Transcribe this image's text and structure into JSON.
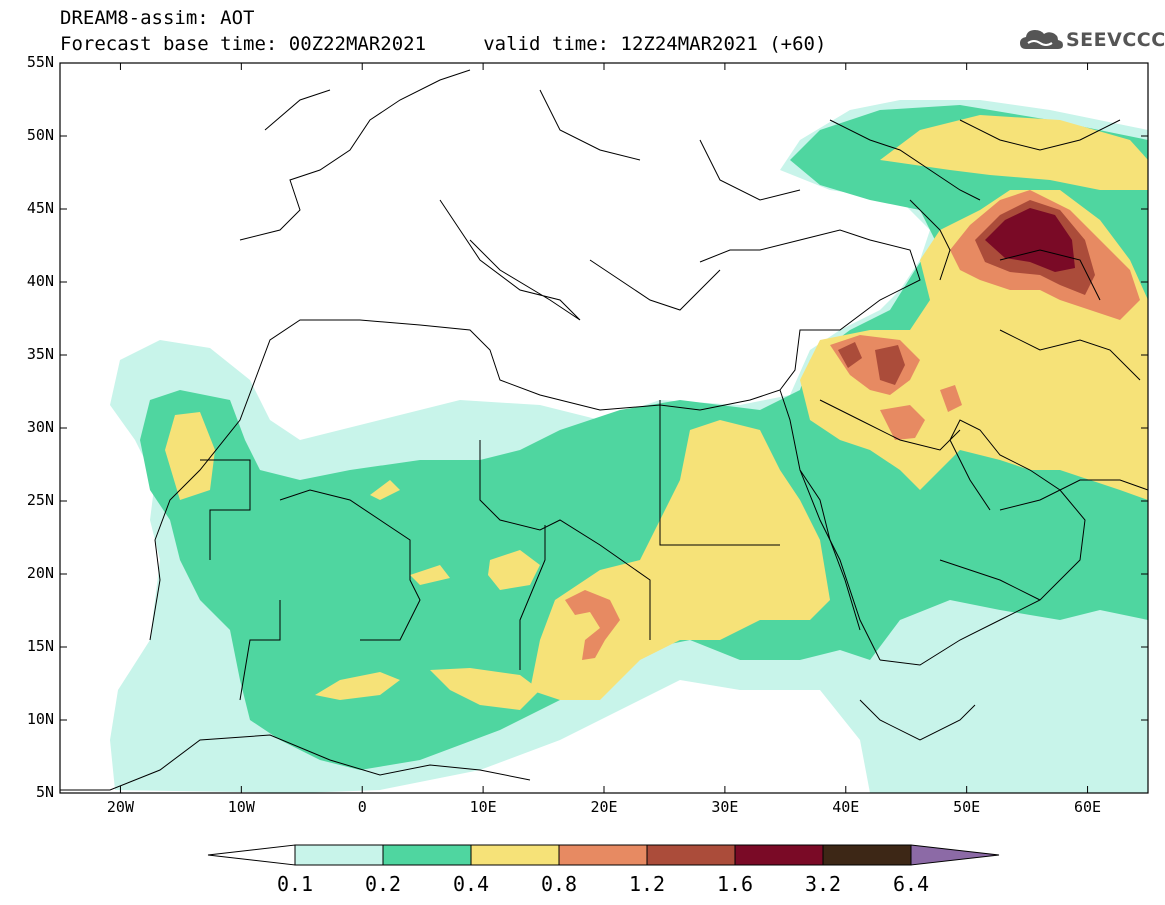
{
  "title": {
    "line1": "DREAM8-assim: AOT",
    "line2": "Forecast base time: 00Z22MAR2021     valid time: 12Z24MAR2021 (+60)"
  },
  "logo": {
    "text": "SEEVCCC",
    "icon": "cloud-icon"
  },
  "map": {
    "lat_ticks": [
      "55N",
      "50N",
      "45N",
      "40N",
      "35N",
      "30N",
      "25N",
      "20N",
      "15N",
      "10N",
      "5N"
    ],
    "lon_ticks": [
      "20W",
      "10W",
      "0",
      "10E",
      "20E",
      "30E",
      "40E",
      "50E",
      "60E"
    ],
    "lat_range": [
      5,
      55
    ],
    "lon_range": [
      -25,
      65
    ]
  },
  "colorbar": {
    "labels": [
      "0.1",
      "0.2",
      "0.4",
      "0.8",
      "1.2",
      "1.6",
      "3.2",
      "6.4"
    ],
    "colors": [
      "#c8f4ea",
      "#4fd6a0",
      "#f6e278",
      "#e78a62",
      "#ab4c3a",
      "#7a0a26",
      "#3d2716",
      "#8c6aa6"
    ],
    "under_color": "#ffffff",
    "over_color": "#8c6aa6"
  }
}
